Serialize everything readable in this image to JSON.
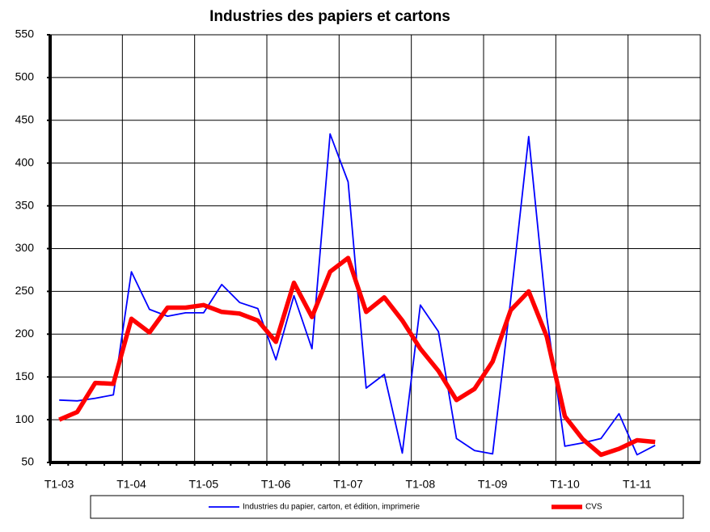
{
  "chart_data": {
    "type": "line",
    "title": "Industries des papiers et cartons",
    "categories": [
      "T1-03",
      null,
      null,
      null,
      "T1-04",
      null,
      null,
      null,
      "T1-05",
      null,
      null,
      null,
      "T1-06",
      null,
      null,
      null,
      "T1-07",
      null,
      null,
      null,
      "T1-08",
      null,
      null,
      null,
      "T1-09",
      null,
      null,
      null,
      "T1-10",
      null,
      null,
      null,
      "T1-11",
      null,
      null,
      null
    ],
    "series": [
      {
        "name": "Industries du papier, carton, et édition, imprimerie",
        "color": "#0000ff",
        "values": [
          123,
          122,
          125,
          129,
          273,
          229,
          221,
          225,
          225,
          258,
          237,
          230,
          170,
          245,
          183,
          434,
          378,
          137,
          153,
          61,
          234,
          203,
          78,
          64,
          60,
          240,
          431,
          220,
          69,
          73,
          78,
          107,
          59,
          70,
          null,
          null
        ]
      },
      {
        "name": "CVS",
        "color": "#ff0000",
        "values": [
          100,
          109,
          143,
          142,
          218,
          202,
          231,
          231,
          234,
          226,
          224,
          216,
          191,
          260,
          220,
          273,
          289,
          226,
          243,
          216,
          183,
          157,
          123,
          136,
          168,
          228,
          250,
          197,
          104,
          77,
          59,
          66,
          76,
          74,
          null,
          null
        ]
      }
    ],
    "ylim": [
      50,
      550
    ],
    "yticks": [
      50,
      100,
      150,
      200,
      250,
      300,
      350,
      400,
      450,
      500,
      550
    ],
    "grid": true
  }
}
